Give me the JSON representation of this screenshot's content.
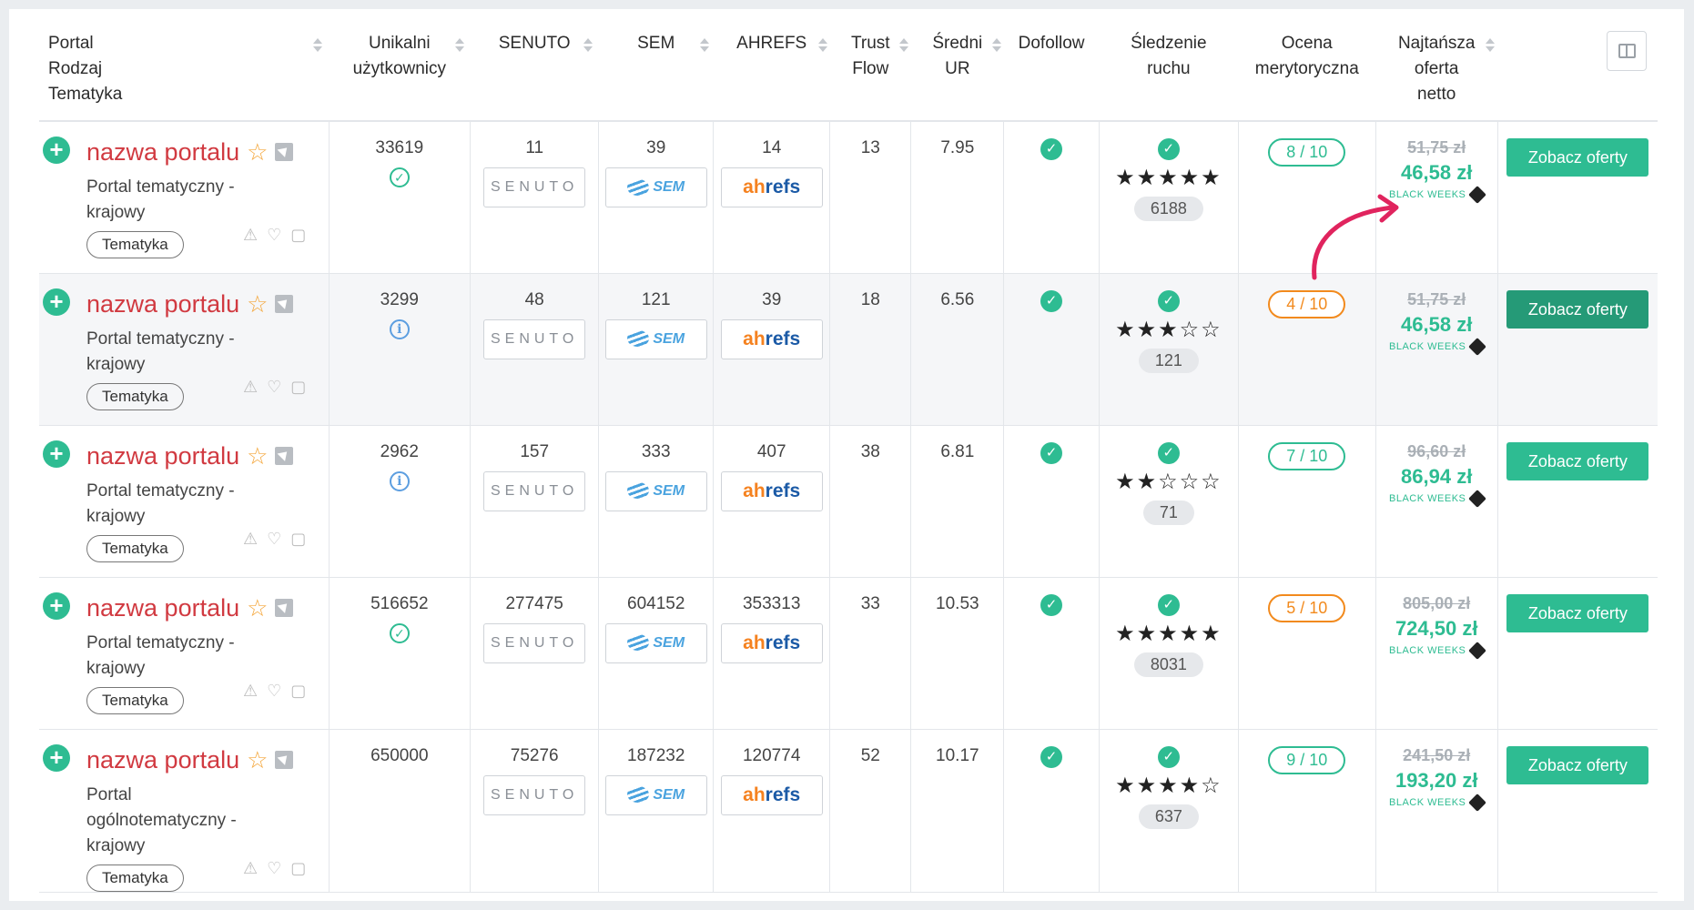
{
  "header": {
    "portal": [
      "Portal",
      "Rodzaj",
      "Tematyka"
    ],
    "unique": [
      "Unikalni",
      "użytkownicy"
    ],
    "senuto": [
      "SENUTO"
    ],
    "sem": [
      "SEM"
    ],
    "ahrefs": [
      "AHREFS"
    ],
    "trust": [
      "Trust",
      "Flow"
    ],
    "ur": [
      "Średni",
      "UR"
    ],
    "dofollow": [
      "Dofollow"
    ],
    "traffic": [
      "Śledzenie",
      "ruchu"
    ],
    "rating": [
      "Ocena",
      "merytoryczna"
    ],
    "offer": [
      "Najtańsza",
      "oferta",
      "netto"
    ]
  },
  "badges": {
    "senuto": "SENUTO",
    "sem": "SEM",
    "ahrefs_a": "ah",
    "ahrefs_b": "refs"
  },
  "rows": [
    {
      "name": "nazwa portalu",
      "type": "Portal tematyczny - krajowy",
      "tag": "Tematyka",
      "users": "33619",
      "users_icon": "check-circle-icon",
      "senuto": "11",
      "sem": "39",
      "ahrefs": "14",
      "tf": "13",
      "ur": "7.95",
      "stars": "★★★★★",
      "stars_value": 5,
      "visits": "6188",
      "score": "8 / 10",
      "score_color": "green",
      "old_price": "51,75 zł",
      "new_price": "46,58 zł",
      "promo": "BLACK WEEKS",
      "button": "Zobacz oferty"
    },
    {
      "name": "nazwa portalu",
      "type": "Portal tematyczny - krajowy",
      "tag": "Tematyka",
      "users": "3299",
      "users_icon": "info-icon",
      "senuto": "48",
      "sem": "121",
      "ahrefs": "39",
      "tf": "18",
      "ur": "6.56",
      "stars": "★★★☆☆",
      "stars_value": 3,
      "visits": "121",
      "score": "4 / 10",
      "score_color": "orange",
      "old_price": "51,75 zł",
      "new_price": "46,58 zł",
      "promo": "BLACK WEEKS",
      "button": "Zobacz oferty"
    },
    {
      "name": "nazwa portalu",
      "type": "Portal tematyczny - krajowy",
      "tag": "Tematyka",
      "users": "2962",
      "users_icon": "info-icon",
      "senuto": "157",
      "sem": "333",
      "ahrefs": "407",
      "tf": "38",
      "ur": "6.81",
      "stars": "★★☆☆☆",
      "stars_value": 2,
      "visits": "71",
      "score": "7 / 10",
      "score_color": "green",
      "old_price": "96,60 zł",
      "new_price": "86,94 zł",
      "promo": "BLACK WEEKS",
      "button": "Zobacz oferty"
    },
    {
      "name": "nazwa portalu",
      "type": "Portal tematyczny - krajowy",
      "tag": "Tematyka",
      "users": "516652",
      "users_icon": "check-circle-icon",
      "senuto": "277475",
      "sem": "604152",
      "ahrefs": "353313",
      "tf": "33",
      "ur": "10.53",
      "stars": "★★★★★",
      "stars_value": 5,
      "visits": "8031",
      "score": "5 / 10",
      "score_color": "orange",
      "old_price": "805,00 zł",
      "new_price": "724,50 zł",
      "promo": "BLACK WEEKS",
      "button": "Zobacz oferty"
    },
    {
      "name": "nazwa portalu",
      "type": "Portal ogólnotematyczny - krajowy",
      "tag": "Tematyka",
      "users": "650000",
      "users_icon": "none",
      "senuto": "75276",
      "sem": "187232",
      "ahrefs": "120774",
      "tf": "52",
      "ur": "10.17",
      "stars": "★★★★☆",
      "stars_value": 4,
      "visits": "637",
      "score": "9 / 10",
      "score_color": "green",
      "old_price": "241,50 zł",
      "new_price": "193,20 zł",
      "promo": "BLACK WEEKS",
      "button": "Zobacz oferty"
    }
  ],
  "colors": {
    "accent": "#2ebc92",
    "name": "#d13a41",
    "orange": "#f28a1d",
    "arrow": "#e0245e"
  }
}
